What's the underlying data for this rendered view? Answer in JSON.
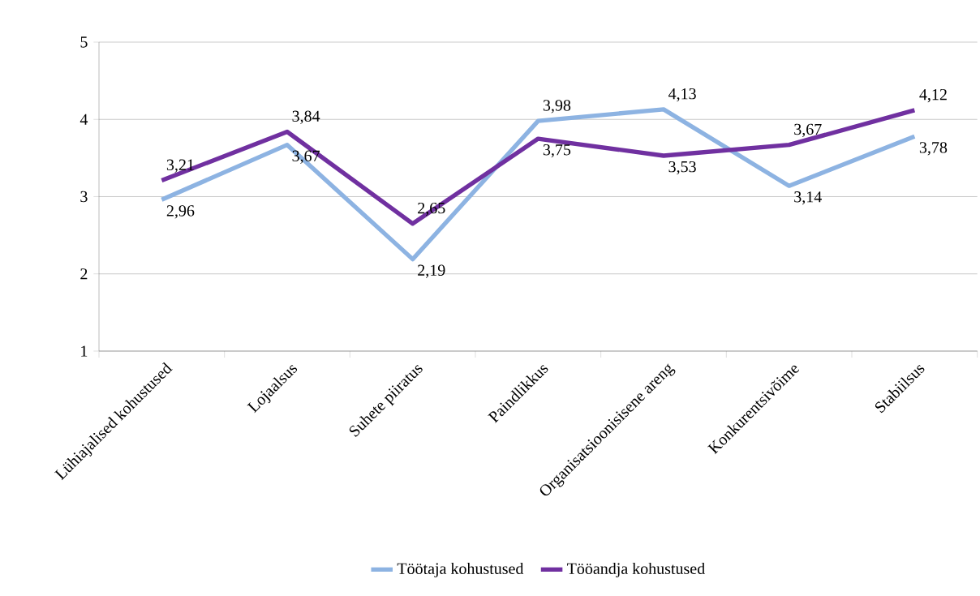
{
  "chart_data": {
    "type": "line",
    "categories": [
      "Lühiajalised kohustused",
      "Lojaalsus",
      "Suhete piiratus",
      "Paindlikkus",
      "Organisatsioonisisene areng",
      "Konkurentsivõime",
      "Stabiilsus"
    ],
    "series": [
      {
        "name": "Töötaja kohustused",
        "color": "#8db3e2",
        "values": [
          2.96,
          3.67,
          2.19,
          3.98,
          4.13,
          3.14,
          3.78
        ],
        "value_labels": [
          "2,96",
          "3,67",
          "2,19",
          "3,98",
          "4,13",
          "3,14",
          "3,78"
        ]
      },
      {
        "name": "Tööandja kohustused",
        "color": "#7030a0",
        "values": [
          3.21,
          3.84,
          2.65,
          3.75,
          3.53,
          3.67,
          4.12
        ],
        "value_labels": [
          "3,21",
          "3,84",
          "2,65",
          "3,75",
          "3,53",
          "3,67",
          "4,12"
        ]
      }
    ],
    "ylim": [
      1,
      5
    ],
    "yticks": [
      1,
      2,
      3,
      4,
      5
    ],
    "grid": "y",
    "legend": "bottom",
    "line_style": "solid"
  }
}
